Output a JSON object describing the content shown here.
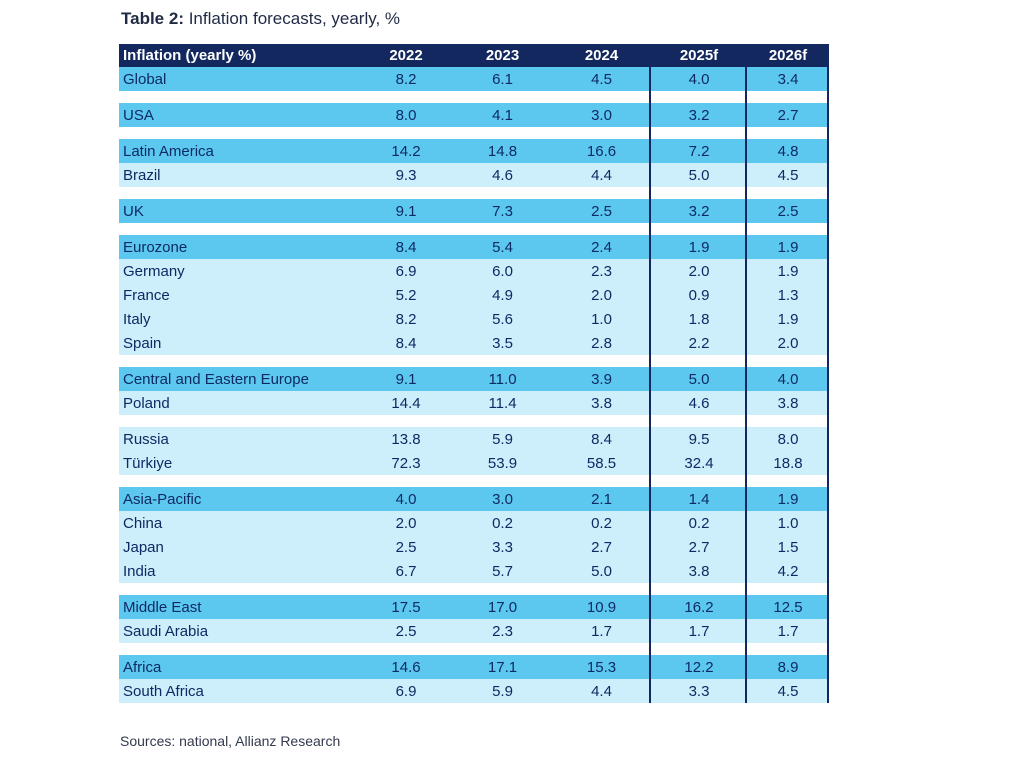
{
  "caption": {
    "label": "Table 2:",
    "text": " Inflation forecasts, yearly, %"
  },
  "chart_data": {
    "type": "table",
    "title": "Table 2: Inflation forecasts, yearly, %",
    "columns": [
      "Inflation (yearly %)",
      "2022",
      "2023",
      "2024",
      "2025f",
      "2026f"
    ],
    "groups": [
      {
        "rows": [
          {
            "name": "Global",
            "values": [
              "8.2",
              "6.1",
              "4.5",
              "4.0",
              "3.4"
            ]
          }
        ]
      },
      {
        "rows": [
          {
            "name": "USA",
            "values": [
              "8.0",
              "4.1",
              "3.0",
              "3.2",
              "2.7"
            ]
          }
        ]
      },
      {
        "rows": [
          {
            "name": "Latin America",
            "values": [
              "14.2",
              "14.8",
              "16.6",
              "7.2",
              "4.8"
            ]
          },
          {
            "name": "Brazil",
            "values": [
              "9.3",
              "4.6",
              "4.4",
              "5.0",
              "4.5"
            ]
          }
        ]
      },
      {
        "rows": [
          {
            "name": "UK",
            "values": [
              "9.1",
              "7.3",
              "2.5",
              "3.2",
              "2.5"
            ]
          }
        ]
      },
      {
        "rows": [
          {
            "name": "Eurozone",
            "values": [
              "8.4",
              "5.4",
              "2.4",
              "1.9",
              "1.9"
            ]
          },
          {
            "name": "Germany",
            "values": [
              "6.9",
              "6.0",
              "2.3",
              "2.0",
              "1.9"
            ]
          },
          {
            "name": "France",
            "values": [
              "5.2",
              "4.9",
              "2.0",
              "0.9",
              "1.3"
            ]
          },
          {
            "name": "Italy",
            "values": [
              "8.2",
              "5.6",
              "1.0",
              "1.8",
              "1.9"
            ]
          },
          {
            "name": "Spain",
            "values": [
              "8.4",
              "3.5",
              "2.8",
              "2.2",
              "2.0"
            ]
          }
        ]
      },
      {
        "rows": [
          {
            "name": "Central and Eastern Europe",
            "values": [
              "9.1",
              "11.0",
              "3.9",
              "5.0",
              "4.0"
            ]
          },
          {
            "name": "Poland",
            "values": [
              "14.4",
              "11.4",
              "3.8",
              "4.6",
              "3.8"
            ]
          }
        ]
      },
      {
        "plain": true,
        "rows": [
          {
            "name": "Russia",
            "values": [
              "13.8",
              "5.9",
              "8.4",
              "9.5",
              "8.0"
            ]
          },
          {
            "name": "Türkiye",
            "values": [
              "72.3",
              "53.9",
              "58.5",
              "32.4",
              "18.8"
            ]
          }
        ]
      },
      {
        "rows": [
          {
            "name": "Asia-Pacific",
            "values": [
              "4.0",
              "3.0",
              "2.1",
              "1.4",
              "1.9"
            ]
          },
          {
            "name": "China",
            "values": [
              "2.0",
              "0.2",
              "0.2",
              "0.2",
              "1.0"
            ]
          },
          {
            "name": "Japan",
            "values": [
              "2.5",
              "3.3",
              "2.7",
              "2.7",
              "1.5"
            ]
          },
          {
            "name": "India",
            "values": [
              "6.7",
              "5.7",
              "5.0",
              "3.8",
              "4.2"
            ]
          }
        ]
      },
      {
        "rows": [
          {
            "name": "Middle East",
            "values": [
              "17.5",
              "17.0",
              "10.9",
              "16.2",
              "12.5"
            ]
          },
          {
            "name": "Saudi Arabia",
            "values": [
              "2.5",
              "2.3",
              "1.7",
              "1.7",
              "1.7"
            ]
          }
        ]
      },
      {
        "rows": [
          {
            "name": "Africa",
            "values": [
              "14.6",
              "17.1",
              "15.3",
              "12.2",
              "8.9"
            ]
          },
          {
            "name": "South Africa",
            "values": [
              "6.9",
              "5.9",
              "4.4",
              "3.3",
              "4.5"
            ]
          }
        ]
      }
    ]
  },
  "colors": {
    "header_bg": "#12285f",
    "lead_row": "#5cc8ef",
    "sub_row": "#cdeefb",
    "divider": "#12285f"
  },
  "source": "Sources: national, Allianz Research"
}
